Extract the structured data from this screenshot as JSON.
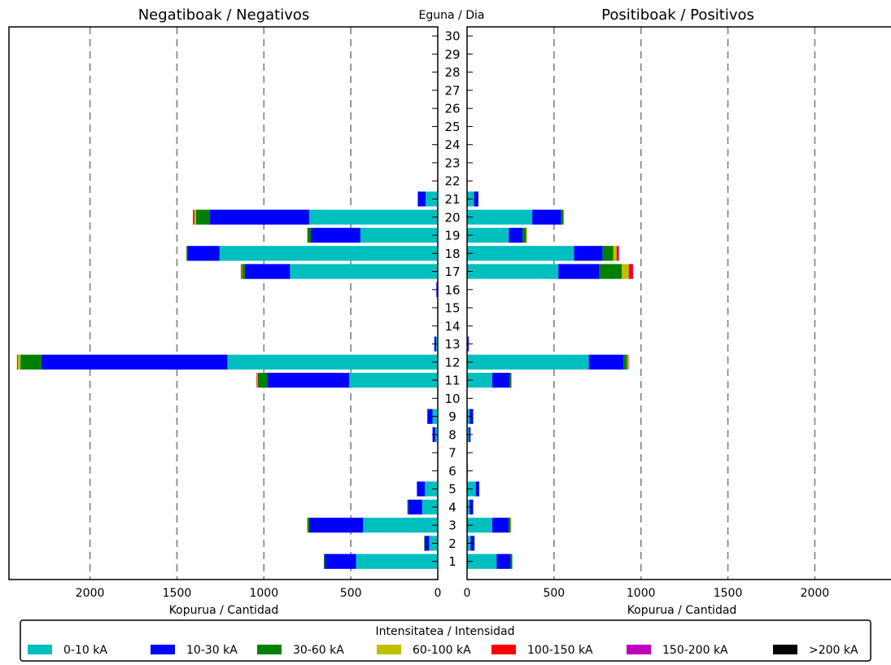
{
  "chart_data": {
    "type": "bar",
    "orientation": "horizontal-mirrored",
    "titles": {
      "left": "Negatiboak / Negativos",
      "center": "Eguna / Dia",
      "right": "Positiboak / Positivos"
    },
    "xlabels": {
      "left": "Kopurua / Cantidad",
      "right": "Kopurua / Cantidad"
    },
    "xlim": [
      0,
      2450
    ],
    "xticks": [
      0,
      500,
      1000,
      1500,
      2000
    ],
    "grid": {
      "vertical_dashed": true
    },
    "categories": [
      "1",
      "2",
      "3",
      "4",
      "5",
      "6",
      "7",
      "8",
      "9",
      "10",
      "11",
      "12",
      "13",
      "14",
      "15",
      "16",
      "17",
      "18",
      "19",
      "20",
      "21",
      "22",
      "23",
      "24",
      "25",
      "26",
      "27",
      "28",
      "29",
      "30"
    ],
    "legend": {
      "title": "Intensitatea / Intensidad",
      "placement": "bottom",
      "entries": [
        {
          "name": "0-10 kA",
          "color": "#00bfbf"
        },
        {
          "name": "10-30 kA",
          "color": "#0000ff"
        },
        {
          "name": "30-60 kA",
          "color": "#008000"
        },
        {
          "name": "60-100 kA",
          "color": "#bfbf00"
        },
        {
          "name": "100-150 kA",
          "color": "#ff0000"
        },
        {
          "name": "150-200 kA",
          "color": "#bf00bf"
        },
        {
          "name": ">200 kA",
          "color": "#000000"
        }
      ]
    },
    "negative": {
      "series": [
        {
          "name": "0-10 kA",
          "values": [
            470,
            50,
            430,
            90,
            75,
            0,
            0,
            15,
            30,
            0,
            510,
            1210,
            10,
            0,
            0,
            5,
            850,
            1255,
            445,
            740,
            70,
            0,
            0,
            0,
            0,
            0,
            0,
            0,
            0,
            0
          ]
        },
        {
          "name": "10-30 kA",
          "values": [
            180,
            25,
            310,
            80,
            45,
            0,
            0,
            15,
            30,
            0,
            470,
            1070,
            10,
            0,
            0,
            3,
            260,
            185,
            285,
            570,
            45,
            0,
            0,
            0,
            0,
            0,
            0,
            0,
            0,
            0
          ]
        },
        {
          "name": "30-60 kA",
          "values": [
            5,
            3,
            10,
            5,
            0,
            0,
            0,
            0,
            0,
            0,
            55,
            120,
            0,
            0,
            0,
            0,
            15,
            5,
            20,
            80,
            0,
            0,
            0,
            0,
            0,
            0,
            0,
            0,
            0,
            0
          ]
        },
        {
          "name": "60-100 kA",
          "values": [
            0,
            0,
            2,
            0,
            0,
            0,
            0,
            0,
            0,
            0,
            5,
            15,
            0,
            0,
            0,
            0,
            5,
            0,
            0,
            10,
            0,
            0,
            0,
            0,
            0,
            0,
            0,
            0,
            0,
            0
          ]
        },
        {
          "name": "100-150 kA",
          "values": [
            0,
            0,
            0,
            0,
            0,
            0,
            0,
            0,
            0,
            0,
            2,
            5,
            0,
            0,
            0,
            0,
            3,
            0,
            0,
            8,
            0,
            0,
            0,
            0,
            0,
            0,
            0,
            0,
            0,
            0
          ]
        },
        {
          "name": "150-200 kA",
          "values": [
            0,
            0,
            0,
            0,
            0,
            0,
            0,
            0,
            0,
            0,
            0,
            0,
            0,
            0,
            0,
            0,
            0,
            0,
            0,
            0,
            0,
            0,
            0,
            0,
            0,
            0,
            0,
            0,
            0,
            0
          ]
        },
        {
          "name": ">200 kA",
          "values": [
            0,
            0,
            0,
            0,
            0,
            0,
            0,
            0,
            0,
            0,
            0,
            0,
            0,
            0,
            0,
            0,
            0,
            0,
            0,
            0,
            0,
            0,
            0,
            0,
            0,
            0,
            0,
            0,
            0,
            0
          ]
        }
      ]
    },
    "positive": {
      "series": [
        {
          "name": "0-10 kA",
          "values": [
            170,
            20,
            145,
            15,
            50,
            0,
            0,
            10,
            15,
            0,
            145,
            700,
            5,
            0,
            0,
            0,
            525,
            615,
            240,
            375,
            40,
            0,
            0,
            0,
            0,
            0,
            0,
            0,
            0,
            0
          ]
        },
        {
          "name": "10-30 kA",
          "values": [
            80,
            20,
            95,
            20,
            20,
            0,
            0,
            10,
            20,
            0,
            100,
            200,
            5,
            0,
            0,
            0,
            235,
            165,
            80,
            165,
            25,
            0,
            0,
            0,
            0,
            0,
            0,
            0,
            0,
            0
          ]
        },
        {
          "name": "30-60 kA",
          "values": [
            10,
            3,
            10,
            0,
            0,
            3,
            0,
            0,
            0,
            0,
            10,
            20,
            0,
            0,
            0,
            0,
            130,
            60,
            20,
            15,
            0,
            0,
            0,
            0,
            0,
            0,
            0,
            0,
            0,
            0
          ]
        },
        {
          "name": "60-100 kA",
          "values": [
            0,
            0,
            3,
            0,
            0,
            0,
            0,
            0,
            0,
            0,
            0,
            5,
            0,
            0,
            0,
            0,
            40,
            20,
            5,
            0,
            0,
            0,
            0,
            0,
            0,
            0,
            0,
            0,
            0,
            0
          ]
        },
        {
          "name": "100-150 kA",
          "values": [
            0,
            0,
            0,
            0,
            0,
            0,
            0,
            0,
            0,
            0,
            0,
            3,
            0,
            0,
            0,
            0,
            22,
            10,
            0,
            0,
            0,
            0,
            0,
            0,
            0,
            0,
            0,
            0,
            0,
            0
          ]
        },
        {
          "name": "150-200 kA",
          "values": [
            0,
            0,
            0,
            0,
            0,
            0,
            0,
            0,
            0,
            0,
            0,
            0,
            0,
            0,
            0,
            0,
            3,
            3,
            0,
            0,
            0,
            0,
            0,
            0,
            0,
            0,
            0,
            0,
            0,
            0
          ]
        },
        {
          "name": ">200 kA",
          "values": [
            0,
            0,
            0,
            0,
            0,
            0,
            0,
            0,
            0,
            0,
            0,
            0,
            0,
            0,
            0,
            0,
            0,
            0,
            0,
            0,
            0,
            0,
            0,
            0,
            0,
            0,
            0,
            0,
            0,
            0
          ]
        }
      ]
    }
  }
}
